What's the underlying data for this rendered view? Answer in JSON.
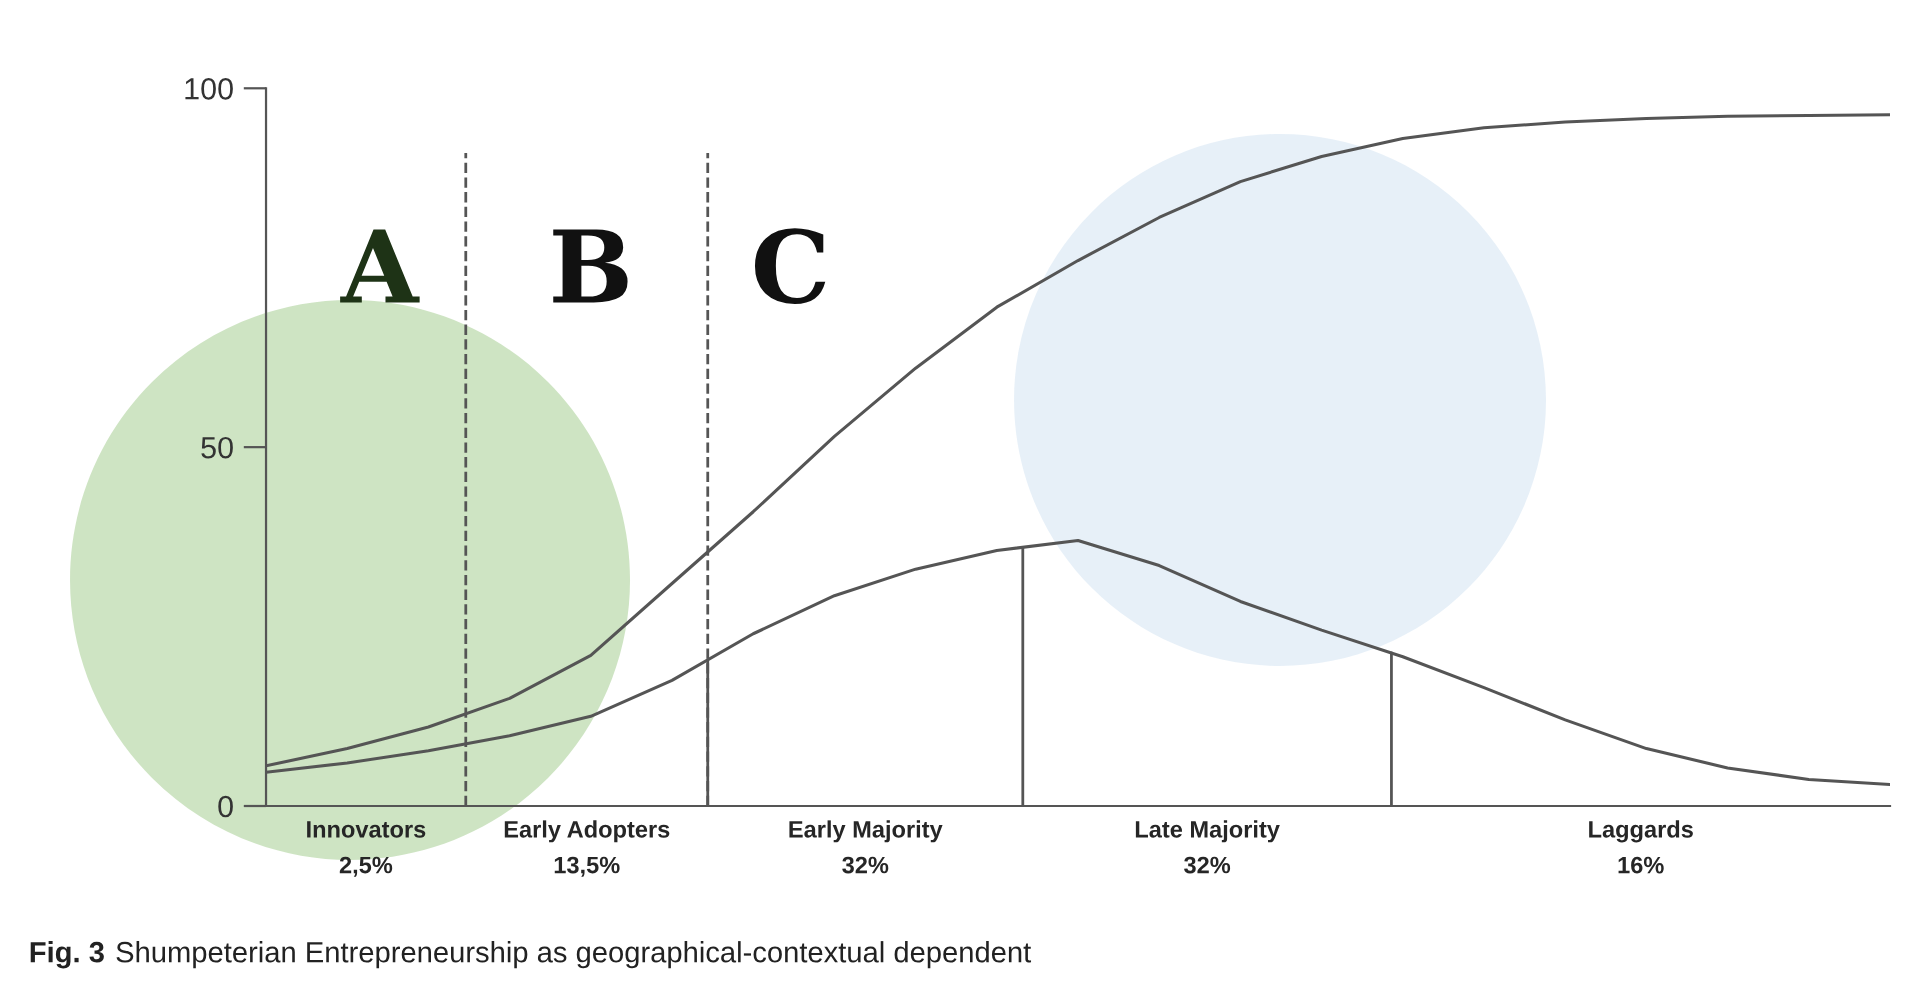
{
  "chart_data": {
    "type": "line",
    "categories": [
      null,
      null,
      null,
      null,
      null,
      null,
      null,
      null,
      null,
      null,
      null,
      null,
      null,
      null,
      null,
      null,
      null,
      null,
      null,
      null,
      null
    ],
    "series": [
      {
        "color": "#555555",
        "values": [
          5.6,
          8,
          11,
          15,
          21,
          31,
          41,
          51.5,
          61,
          69.5,
          76,
          82,
          87,
          90.5,
          93,
          94.5,
          95.3,
          95.8,
          96.1,
          96.2,
          96.3
        ]
      },
      {
        "color": "#555555",
        "values": [
          4.7,
          6,
          7.7,
          9.8,
          12.5,
          17.5,
          24,
          29.3,
          33,
          35.6,
          37,
          33.5,
          28.5,
          24.5,
          20.8,
          16.5,
          12,
          8,
          5.3,
          3.7,
          3
        ]
      }
    ],
    "ylim": [
      0,
      100
    ],
    "yticks": [
      0,
      50,
      100
    ],
    "tick_labels": "y",
    "grid": false,
    "legend": false,
    "marker": "none",
    "line_style": "solid",
    "annotations": [
      "Innovators\n2,5%",
      "Early Adopters\n13,5%",
      "Early Majority\n32%",
      "Late Majority\n32%",
      "Laggards\n16%",
      "A",
      "B",
      "C",
      "Fig. 3",
      "Shumpeterian Entrepreneurship as geographical-contextual dependent"
    ]
  }
}
